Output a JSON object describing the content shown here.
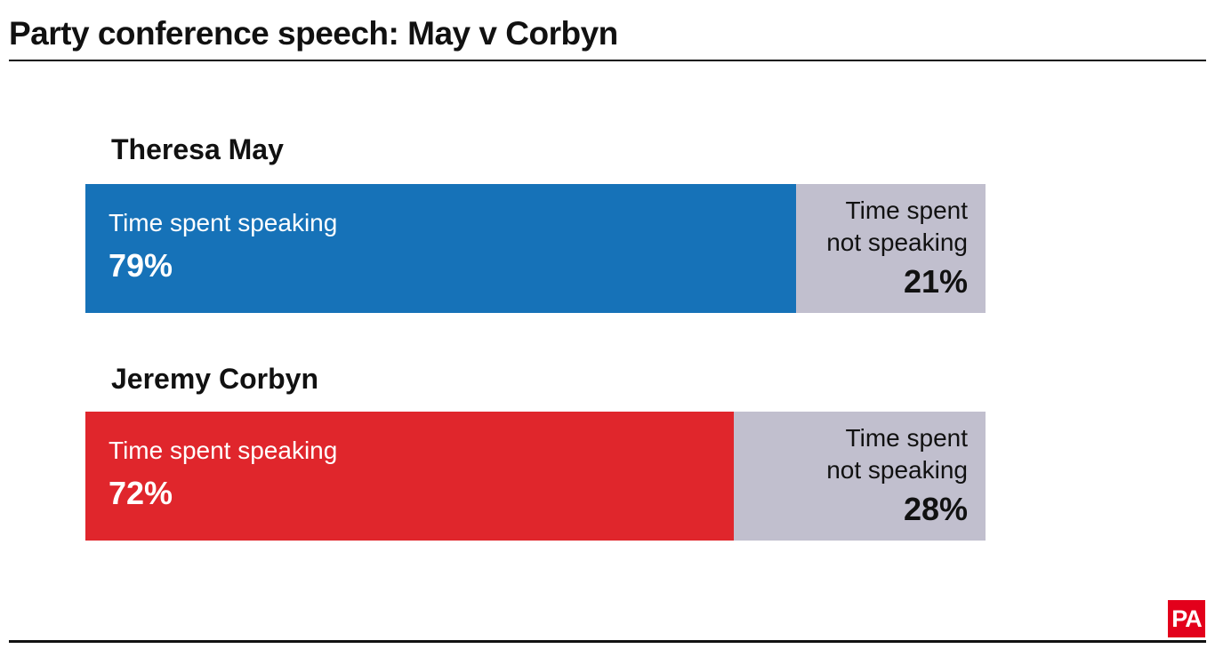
{
  "title": "Party conference speech: May v Corbyn",
  "logo": {
    "text": "PA",
    "color": "#e3001b"
  },
  "colors": {
    "may": "#1672b8",
    "corbyn": "#e0262c",
    "not_speaking": "#c1bfce"
  },
  "chart_data": {
    "type": "bar",
    "title": "Party conference speech: May v Corbyn",
    "stacked": true,
    "orientation": "horizontal",
    "categories": [
      "Theresa May",
      "Jeremy Corbyn"
    ],
    "series": [
      {
        "name": "Time spent speaking",
        "values": [
          79,
          72
        ],
        "labels": [
          "79%",
          "72%"
        ]
      },
      {
        "name": "Time spent not speaking",
        "values": [
          21,
          28
        ],
        "labels": [
          "21%",
          "28%"
        ]
      }
    ],
    "xlim": [
      0,
      100
    ],
    "unit": "%",
    "grid": false,
    "legend": "none"
  },
  "groups": [
    {
      "name": "Theresa May",
      "speaking_label": "Time spent speaking",
      "speaking_value": "79%",
      "not_speaking_label_line1": "Time spent",
      "not_speaking_label_line2": "not speaking",
      "not_speaking_value": "21%"
    },
    {
      "name": "Jeremy Corbyn",
      "speaking_label": "Time spent speaking",
      "speaking_value": "72%",
      "not_speaking_label_line1": "Time spent",
      "not_speaking_label_line2": "not speaking",
      "not_speaking_value": "28%"
    }
  ]
}
